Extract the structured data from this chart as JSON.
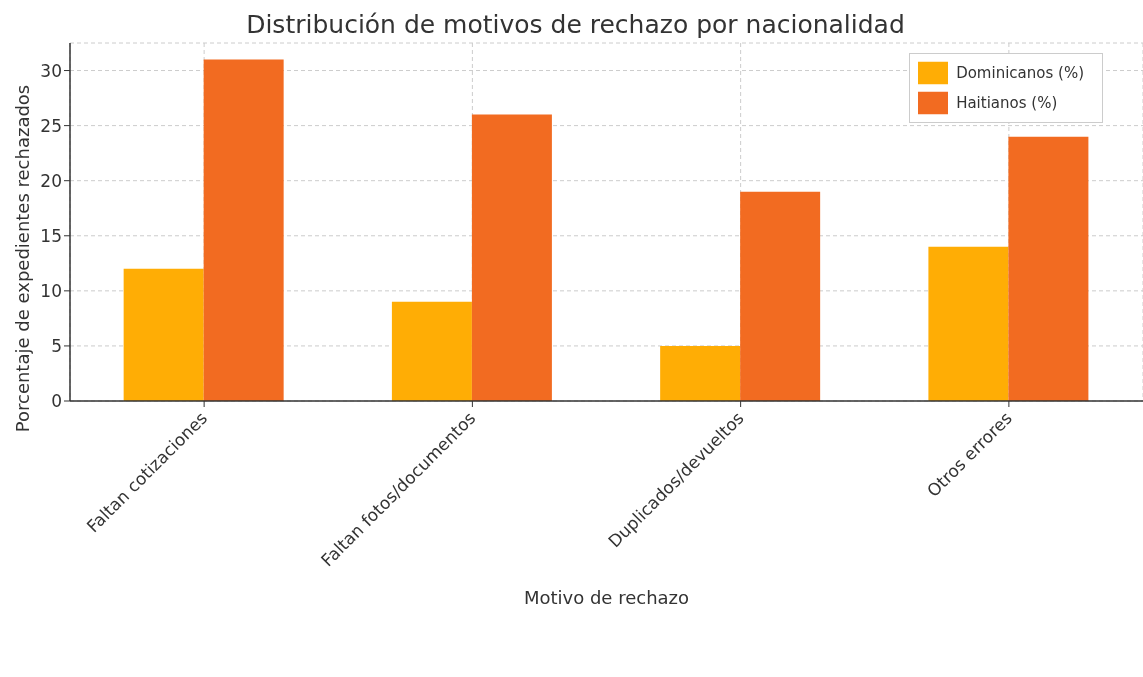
{
  "chart_data": {
    "type": "bar",
    "title": "Distribución de motivos de rechazo por nacionalidad",
    "xlabel": "Motivo de rechazo",
    "ylabel": "Porcentaje de expedientes rechazados",
    "categories": [
      "Faltan cotizaciones",
      "Faltan fotos/documentos",
      "Duplicados/devueltos",
      "Otros errores"
    ],
    "series": [
      {
        "name": "Dominicanos (%)",
        "color": "#ffad05",
        "values": [
          12,
          9,
          5,
          14
        ]
      },
      {
        "name": "Haitianos (%)",
        "color": "#f26b21",
        "values": [
          31,
          26,
          19,
          24
        ]
      }
    ],
    "ylim": [
      0,
      32.5
    ],
    "yticks": [
      0,
      5,
      10,
      15,
      20,
      25,
      30
    ],
    "grid": true,
    "legend": "top right"
  }
}
